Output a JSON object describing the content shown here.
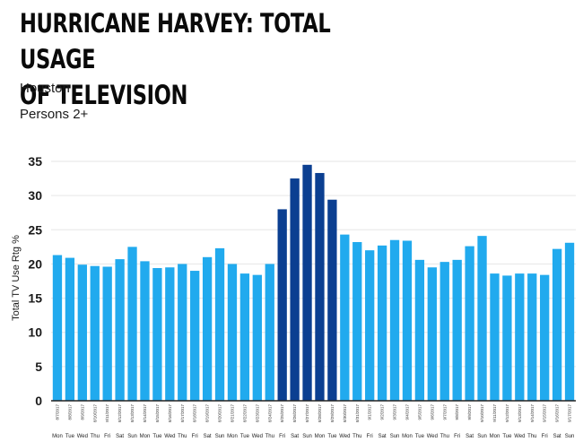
{
  "header": {
    "title_line1": "HURRICANE HARVEY: TOTAL USAGE",
    "title_line2": "OF TELEVISION",
    "subtitle_market": "Houston",
    "subtitle_demo": "Persons 2+"
  },
  "colors": {
    "normal": "#21aaee",
    "highlight": "#0b3f91",
    "gridline": "#e6e6e6",
    "axis": "#222222"
  },
  "chart_data": {
    "type": "bar",
    "title": "HURRICANE HARVEY: TOTAL USAGE OF TELEVISION",
    "subtitle": "Houston / Persons 2+",
    "xlabel": "",
    "ylabel": "Total TV Use Rtg %",
    "ylim": [
      0,
      35
    ],
    "yticks": [
      0,
      5,
      10,
      15,
      20,
      25,
      30,
      35
    ],
    "grid": true,
    "categories": [
      "8/7/2017",
      "8/8/2017",
      "8/9/2017",
      "8/10/2017",
      "8/11/2017",
      "8/12/2017",
      "8/13/2017",
      "8/14/2017",
      "8/15/2017",
      "8/16/2017",
      "8/17/2017",
      "8/18/2017",
      "8/19/2017",
      "8/20/2017",
      "8/21/2017",
      "8/22/2017",
      "8/23/2017",
      "8/24/2017",
      "8/25/2017",
      "8/26/2017",
      "8/27/2017",
      "8/28/2017",
      "8/29/2017",
      "8/30/2017",
      "8/31/2017",
      "9/1/2017",
      "9/2/2017",
      "9/3/2017",
      "9/4/2017",
      "9/5/2017",
      "9/6/2017",
      "9/7/2017",
      "9/8/2017",
      "9/9/2017",
      "9/10/2017",
      "9/11/2017",
      "9/12/2017",
      "9/13/2017",
      "9/14/2017",
      "9/15/2017",
      "9/16/2017",
      "9/17/2017"
    ],
    "days": [
      "Mon",
      "Tue",
      "Wed",
      "Thu",
      "Fri",
      "Sat",
      "Sun",
      "Mon",
      "Tue",
      "Wed",
      "Thu",
      "Fri",
      "Sat",
      "Sun",
      "Mon",
      "Tue",
      "Wed",
      "Thu",
      "Fri",
      "Sat",
      "Sun",
      "Mon",
      "Tue",
      "Wed",
      "Thu",
      "Fri",
      "Sat",
      "Sun",
      "Mon",
      "Tue",
      "Wed",
      "Thu",
      "Fri",
      "Sat",
      "Sun",
      "Mon",
      "Tue",
      "Wed",
      "Thu",
      "Fri",
      "Sat",
      "Sun"
    ],
    "values": [
      21.3,
      20.9,
      19.9,
      19.7,
      19.6,
      20.7,
      22.5,
      20.4,
      19.4,
      19.5,
      20.0,
      19.0,
      21.0,
      22.3,
      20.0,
      18.6,
      18.4,
      20.0,
      28.0,
      32.5,
      34.5,
      33.3,
      29.4,
      24.3,
      23.2,
      22.0,
      22.7,
      23.5,
      23.4,
      20.6,
      19.5,
      20.3,
      20.6,
      22.6,
      24.1,
      18.6,
      18.3,
      18.6,
      18.6,
      18.4,
      22.2,
      23.1
    ],
    "highlighted": [
      false,
      false,
      false,
      false,
      false,
      false,
      false,
      false,
      false,
      false,
      false,
      false,
      false,
      false,
      false,
      false,
      false,
      false,
      true,
      true,
      true,
      true,
      true,
      false,
      false,
      false,
      false,
      false,
      false,
      false,
      false,
      false,
      false,
      false,
      false,
      false,
      false,
      false,
      false,
      false,
      false,
      false
    ]
  }
}
